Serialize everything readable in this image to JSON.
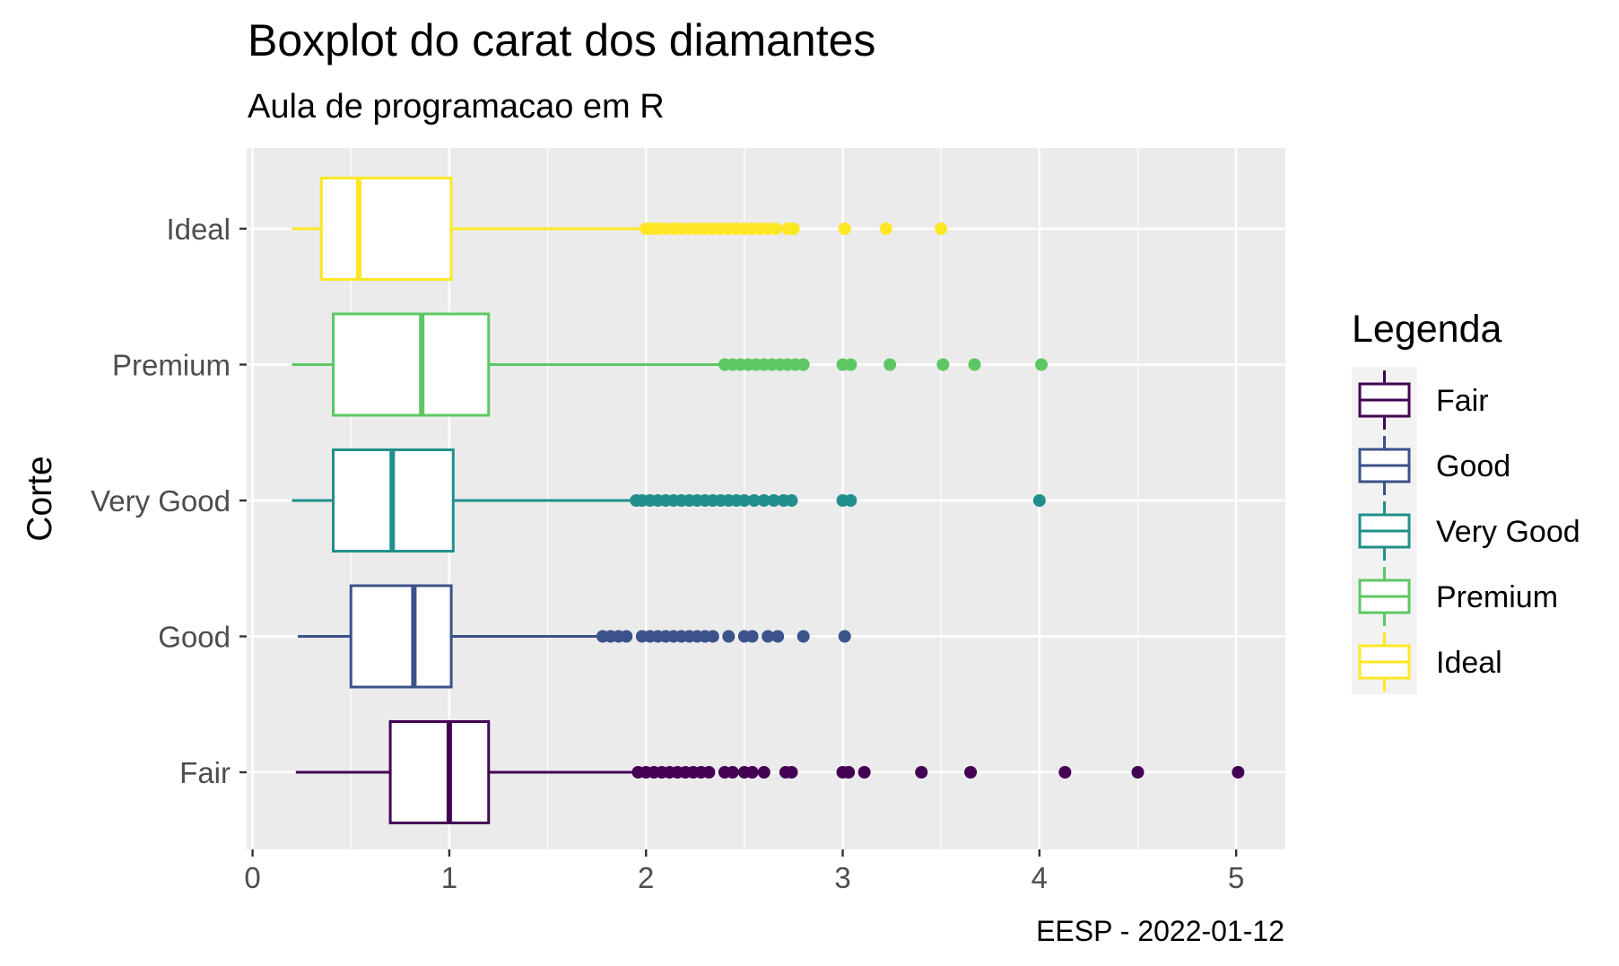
{
  "chart_data": {
    "type": "boxplot",
    "orientation": "horizontal",
    "title": "Boxplot do carat dos diamantes",
    "subtitle": "Aula de programacao em R",
    "caption": "EESP - 2022-01-12",
    "xlabel": "",
    "ylabel": "Corte",
    "xlim": [
      -0.03,
      5.25
    ],
    "xticks": [
      0,
      1,
      2,
      3,
      4,
      5
    ],
    "grid": true,
    "legend": {
      "title": "Legenda",
      "position": "right",
      "entries": [
        "Fair",
        "Good",
        "Very Good",
        "Premium",
        "Ideal"
      ]
    },
    "categories": [
      "Ideal",
      "Premium",
      "Very Good",
      "Good",
      "Fair"
    ],
    "series": [
      {
        "name": "Ideal",
        "color": "#FDE725",
        "min": 0.2,
        "q1": 0.35,
        "median": 0.54,
        "q3": 1.01,
        "max": 1.99,
        "outliers": [
          2.0,
          2.03,
          2.06,
          2.1,
          2.14,
          2.18,
          2.22,
          2.26,
          2.3,
          2.34,
          2.38,
          2.42,
          2.46,
          2.5,
          2.54,
          2.58,
          2.62,
          2.66,
          2.72,
          2.75,
          3.01,
          3.22,
          3.5
        ]
      },
      {
        "name": "Premium",
        "color": "#5DC863",
        "min": 0.2,
        "q1": 0.41,
        "median": 0.86,
        "q3": 1.2,
        "max": 2.38,
        "outliers": [
          2.4,
          2.44,
          2.48,
          2.52,
          2.56,
          2.6,
          2.64,
          2.68,
          2.72,
          2.76,
          2.8,
          3.0,
          3.04,
          3.24,
          3.51,
          3.67,
          4.01
        ]
      },
      {
        "name": "Very Good",
        "color": "#21908C",
        "min": 0.2,
        "q1": 0.41,
        "median": 0.71,
        "q3": 1.02,
        "max": 1.93,
        "outliers": [
          1.95,
          1.98,
          2.02,
          2.06,
          2.1,
          2.14,
          2.18,
          2.22,
          2.26,
          2.3,
          2.34,
          2.38,
          2.42,
          2.46,
          2.5,
          2.55,
          2.6,
          2.65,
          2.7,
          2.74,
          3.0,
          3.04,
          4.0
        ]
      },
      {
        "name": "Good",
        "color": "#3B528B",
        "min": 0.23,
        "q1": 0.5,
        "median": 0.82,
        "q3": 1.01,
        "max": 1.76,
        "outliers": [
          1.78,
          1.82,
          1.86,
          1.9,
          1.98,
          2.02,
          2.06,
          2.1,
          2.14,
          2.18,
          2.22,
          2.26,
          2.3,
          2.34,
          2.42,
          2.5,
          2.54,
          2.62,
          2.67,
          2.8,
          3.01
        ]
      },
      {
        "name": "Fair",
        "color": "#440154",
        "min": 0.22,
        "q1": 0.7,
        "median": 1.0,
        "q3": 1.2,
        "max": 1.94,
        "outliers": [
          1.96,
          2.0,
          2.04,
          2.08,
          2.12,
          2.16,
          2.2,
          2.24,
          2.28,
          2.32,
          2.4,
          2.44,
          2.5,
          2.54,
          2.6,
          2.71,
          2.74,
          3.0,
          3.03,
          3.11,
          3.4,
          3.65,
          4.13,
          4.5,
          5.01
        ]
      }
    ]
  }
}
